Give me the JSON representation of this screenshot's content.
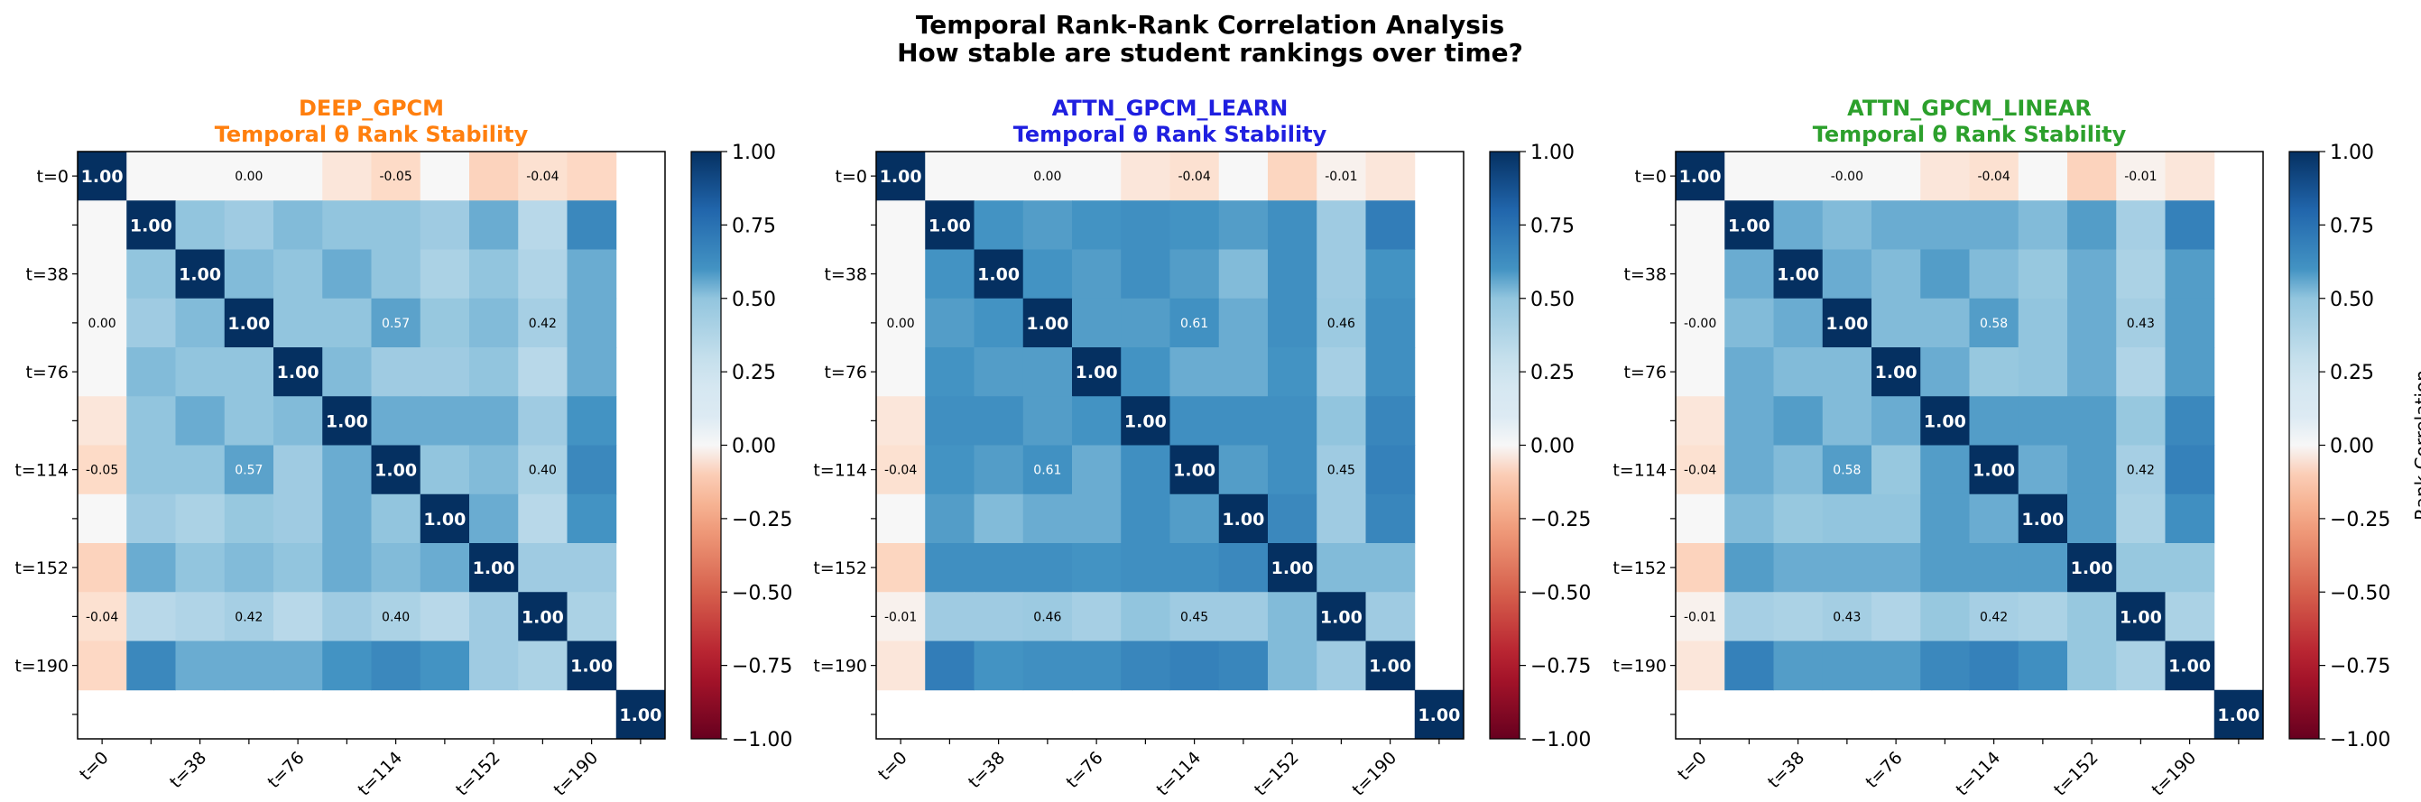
{
  "figure": {
    "title_line1": "Temporal Rank-Rank Correlation Analysis",
    "title_line2": "How stable are student rankings over time?"
  },
  "colorbar": {
    "ticks": [
      "1.00",
      "0.75",
      "0.50",
      "0.25",
      "0.00",
      "−0.25",
      "−0.50",
      "−0.75",
      "−1.00"
    ],
    "label": "Rank Correlation",
    "colormap": "RdBu",
    "range": [
      -1,
      1
    ]
  },
  "chart_data": [
    {
      "type": "heatmap",
      "title": "DEEP_GPCM",
      "subtitle": "Temporal θ Rank Stability",
      "title_color": "#ff7f0e",
      "tick_labels": [
        "t=0",
        "t=38",
        "t=76",
        "t=114",
        "t=152",
        "t=190"
      ],
      "tick_indices": [
        0,
        2,
        4,
        6,
        8,
        10
      ],
      "size": 12,
      "annotated": [
        {
          "i": 0,
          "j": 3,
          "value": 0.0
        },
        {
          "i": 0,
          "j": 6,
          "value": -0.05
        },
        {
          "i": 0,
          "j": 9,
          "value": -0.04
        },
        {
          "i": 3,
          "j": 6,
          "value": 0.57
        },
        {
          "i": 3,
          "j": 9,
          "value": 0.42
        },
        {
          "i": 6,
          "j": 9,
          "value": 0.4
        }
      ],
      "matrix": [
        [
          1.0,
          0.0,
          0.0,
          0.0,
          0.0,
          -0.03,
          -0.05,
          0.0,
          -0.08,
          -0.04,
          -0.06,
          null
        ],
        [
          0.0,
          1.0,
          0.5,
          0.45,
          0.52,
          0.5,
          0.5,
          0.45,
          0.55,
          0.35,
          0.65,
          null
        ],
        [
          0.0,
          0.5,
          1.0,
          0.52,
          0.5,
          0.55,
          0.5,
          0.4,
          0.5,
          0.38,
          0.55,
          null
        ],
        [
          0.0,
          0.45,
          0.52,
          1.0,
          0.5,
          0.5,
          0.57,
          0.48,
          0.52,
          0.42,
          0.55,
          null
        ],
        [
          0.0,
          0.52,
          0.5,
          0.5,
          1.0,
          0.52,
          0.45,
          0.45,
          0.5,
          0.35,
          0.55,
          null
        ],
        [
          -0.03,
          0.5,
          0.55,
          0.5,
          0.52,
          1.0,
          0.55,
          0.55,
          0.55,
          0.45,
          0.6,
          null
        ],
        [
          -0.05,
          0.5,
          0.5,
          0.57,
          0.45,
          0.55,
          1.0,
          0.5,
          0.52,
          0.4,
          0.65,
          null
        ],
        [
          0.0,
          0.45,
          0.4,
          0.48,
          0.45,
          0.55,
          0.5,
          1.0,
          0.55,
          0.35,
          0.6,
          null
        ],
        [
          -0.08,
          0.55,
          0.5,
          0.52,
          0.5,
          0.55,
          0.52,
          0.55,
          1.0,
          0.45,
          0.45,
          null
        ],
        [
          -0.04,
          0.35,
          0.38,
          0.42,
          0.35,
          0.45,
          0.4,
          0.35,
          0.45,
          1.0,
          0.4,
          null
        ],
        [
          -0.06,
          0.65,
          0.55,
          0.55,
          0.55,
          0.6,
          0.65,
          0.6,
          0.45,
          0.4,
          1.0,
          null
        ],
        [
          null,
          null,
          null,
          null,
          null,
          null,
          null,
          null,
          null,
          null,
          null,
          1.0
        ]
      ]
    },
    {
      "type": "heatmap",
      "title": "ATTN_GPCM_LEARN",
      "subtitle": "Temporal θ Rank Stability",
      "title_color": "#1f1fe0",
      "tick_labels": [
        "t=0",
        "t=38",
        "t=76",
        "t=114",
        "t=152",
        "t=190"
      ],
      "tick_indices": [
        0,
        2,
        4,
        6,
        8,
        10
      ],
      "size": 12,
      "annotated": [
        {
          "i": 0,
          "j": 3,
          "value": 0.0
        },
        {
          "i": 0,
          "j": 6,
          "value": -0.04
        },
        {
          "i": 0,
          "j": 9,
          "value": -0.01
        },
        {
          "i": 3,
          "j": 6,
          "value": 0.61
        },
        {
          "i": 3,
          "j": 9,
          "value": 0.46
        },
        {
          "i": 6,
          "j": 9,
          "value": 0.45
        }
      ],
      "matrix": [
        [
          1.0,
          0.0,
          0.0,
          0.0,
          0.0,
          -0.03,
          -0.04,
          0.0,
          -0.07,
          -0.01,
          -0.03,
          null
        ],
        [
          0.0,
          1.0,
          0.6,
          0.58,
          0.6,
          0.62,
          0.6,
          0.58,
          0.62,
          0.45,
          0.7,
          null
        ],
        [
          0.0,
          0.6,
          1.0,
          0.6,
          0.58,
          0.62,
          0.58,
          0.52,
          0.62,
          0.45,
          0.6,
          null
        ],
        [
          0.0,
          0.58,
          0.6,
          1.0,
          0.58,
          0.58,
          0.61,
          0.55,
          0.62,
          0.46,
          0.62,
          null
        ],
        [
          0.0,
          0.6,
          0.58,
          0.58,
          1.0,
          0.6,
          0.55,
          0.55,
          0.6,
          0.42,
          0.62,
          null
        ],
        [
          -0.03,
          0.62,
          0.62,
          0.58,
          0.6,
          1.0,
          0.62,
          0.62,
          0.62,
          0.5,
          0.66,
          null
        ],
        [
          -0.04,
          0.6,
          0.58,
          0.61,
          0.55,
          0.62,
          1.0,
          0.58,
          0.62,
          0.45,
          0.68,
          null
        ],
        [
          0.0,
          0.58,
          0.52,
          0.55,
          0.55,
          0.62,
          0.58,
          1.0,
          0.65,
          0.45,
          0.66,
          null
        ],
        [
          -0.07,
          0.62,
          0.62,
          0.62,
          0.6,
          0.62,
          0.62,
          0.65,
          1.0,
          0.52,
          0.52,
          null
        ],
        [
          -0.01,
          0.45,
          0.45,
          0.46,
          0.42,
          0.5,
          0.45,
          0.45,
          0.52,
          1.0,
          0.45,
          null
        ],
        [
          -0.03,
          0.7,
          0.6,
          0.62,
          0.62,
          0.66,
          0.68,
          0.66,
          0.52,
          0.45,
          1.0,
          null
        ],
        [
          null,
          null,
          null,
          null,
          null,
          null,
          null,
          null,
          null,
          null,
          null,
          1.0
        ]
      ]
    },
    {
      "type": "heatmap",
      "title": "ATTN_GPCM_LINEAR",
      "subtitle": "Temporal θ Rank Stability",
      "title_color": "#2ca02c",
      "tick_labels": [
        "t=0",
        "t=38",
        "t=76",
        "t=114",
        "t=152",
        "t=190"
      ],
      "tick_indices": [
        0,
        2,
        4,
        6,
        8,
        10
      ],
      "size": 12,
      "annotated": [
        {
          "i": 0,
          "j": 3,
          "value": -0.0
        },
        {
          "i": 0,
          "j": 6,
          "value": -0.04
        },
        {
          "i": 0,
          "j": 9,
          "value": -0.01
        },
        {
          "i": 3,
          "j": 6,
          "value": 0.58
        },
        {
          "i": 3,
          "j": 9,
          "value": 0.43
        },
        {
          "i": 6,
          "j": 9,
          "value": 0.42
        }
      ],
      "matrix": [
        [
          1.0,
          0.0,
          0.0,
          0.0,
          0.0,
          -0.03,
          -0.04,
          0.0,
          -0.08,
          -0.01,
          -0.03,
          null
        ],
        [
          0.0,
          1.0,
          0.55,
          0.52,
          0.55,
          0.55,
          0.55,
          0.52,
          0.58,
          0.42,
          0.68,
          null
        ],
        [
          0.0,
          0.55,
          1.0,
          0.55,
          0.52,
          0.58,
          0.52,
          0.48,
          0.55,
          0.4,
          0.58,
          null
        ],
        [
          0.0,
          0.52,
          0.55,
          1.0,
          0.52,
          0.52,
          0.58,
          0.5,
          0.55,
          0.43,
          0.58,
          null
        ],
        [
          0.0,
          0.55,
          0.52,
          0.52,
          1.0,
          0.55,
          0.48,
          0.5,
          0.55,
          0.38,
          0.58,
          null
        ],
        [
          -0.03,
          0.55,
          0.58,
          0.52,
          0.55,
          1.0,
          0.58,
          0.58,
          0.58,
          0.48,
          0.65,
          null
        ],
        [
          -0.04,
          0.55,
          0.52,
          0.58,
          0.48,
          0.58,
          1.0,
          0.55,
          0.58,
          0.42,
          0.68,
          null
        ],
        [
          0.0,
          0.52,
          0.48,
          0.5,
          0.5,
          0.58,
          0.55,
          1.0,
          0.58,
          0.4,
          0.62,
          null
        ],
        [
          -0.08,
          0.58,
          0.55,
          0.55,
          0.55,
          0.58,
          0.58,
          0.58,
          1.0,
          0.48,
          0.48,
          null
        ],
        [
          -0.01,
          0.42,
          0.4,
          0.43,
          0.38,
          0.48,
          0.42,
          0.4,
          0.48,
          1.0,
          0.4,
          null
        ],
        [
          -0.03,
          0.68,
          0.58,
          0.58,
          0.58,
          0.65,
          0.68,
          0.62,
          0.48,
          0.4,
          1.0,
          null
        ],
        [
          null,
          null,
          null,
          null,
          null,
          null,
          null,
          null,
          null,
          null,
          null,
          1.0
        ]
      ]
    }
  ]
}
